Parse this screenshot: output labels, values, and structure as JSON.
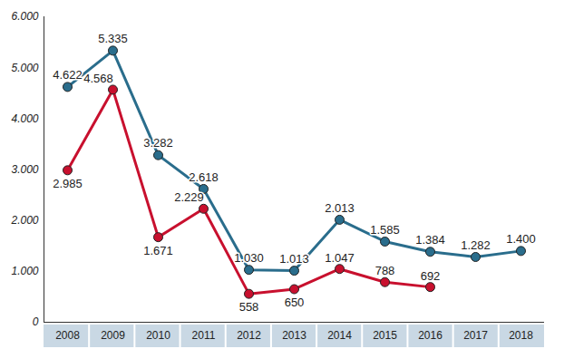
{
  "chart_data": {
    "type": "line",
    "x": [
      "2008",
      "2009",
      "2010",
      "2011",
      "2012",
      "2013",
      "2014",
      "2015",
      "2016",
      "2017",
      "2018"
    ],
    "ylim": [
      0,
      6000
    ],
    "yticks": [
      0,
      {
        "value": 1000,
        "label": "1.000"
      },
      {
        "value": 2000,
        "label": "2.000"
      },
      {
        "value": 3000,
        "label": "3.000"
      },
      {
        "value": 4000,
        "label": "4.000"
      },
      {
        "value": 5000,
        "label": "5.000"
      },
      {
        "value": 6000,
        "label": "6.000"
      }
    ],
    "grid": false,
    "data_labels": true,
    "series": [
      {
        "color": "#2a6d8c",
        "marker": "circle",
        "values": [
          4622,
          5335,
          3282,
          2618,
          1030,
          1013,
          2013,
          1585,
          1384,
          1282,
          1400
        ],
        "value_labels": [
          "4.622",
          "5.335",
          "3.282",
          "2.618",
          "1.030",
          "1.013",
          "2.013",
          "1.585",
          "1.384",
          "1.282",
          "1.400"
        ]
      },
      {
        "color": "#c8102e",
        "marker": "circle",
        "values": [
          2985,
          4568,
          1671,
          2229,
          558,
          650,
          1047,
          788,
          692,
          null,
          null
        ],
        "value_labels": [
          "2.985",
          "4.568",
          "1.671",
          "2.229",
          "558",
          "650",
          "1.047",
          "788",
          "692",
          null,
          null
        ]
      }
    ]
  }
}
